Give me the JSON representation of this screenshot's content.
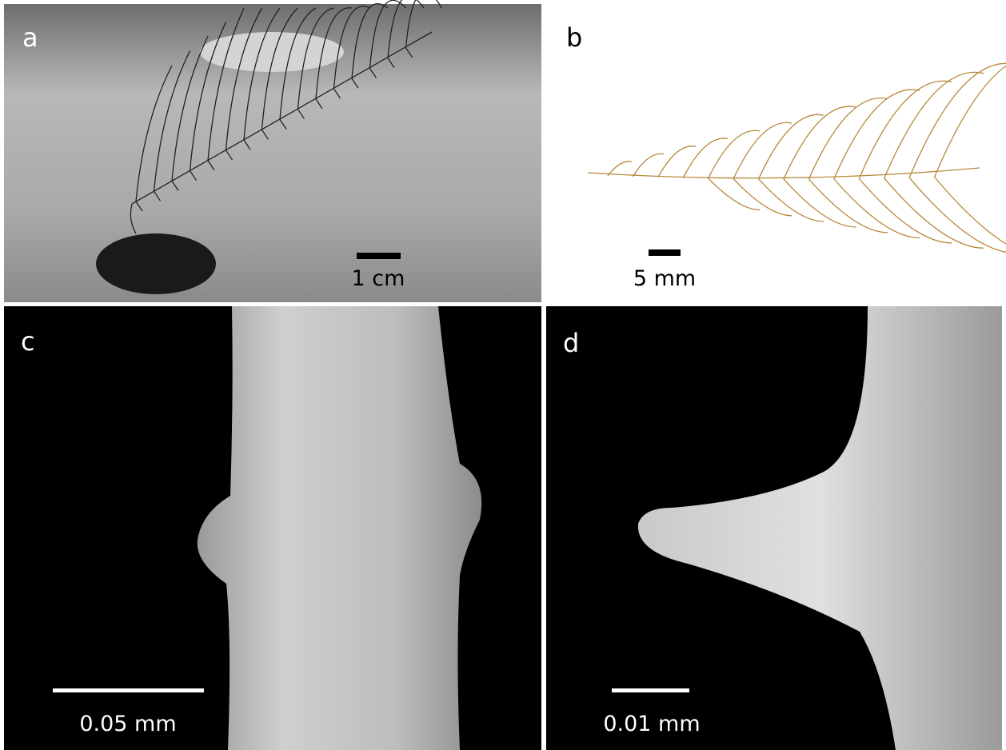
{
  "panels": [
    {
      "label": "a",
      "scale_bar": "1 cm"
    },
    {
      "label": "b",
      "scale_bar": "5 mm"
    },
    {
      "label": "c",
      "scale_bar": "0.05 mm"
    },
    {
      "label": "d",
      "scale_bar": "0.01 mm"
    }
  ]
}
